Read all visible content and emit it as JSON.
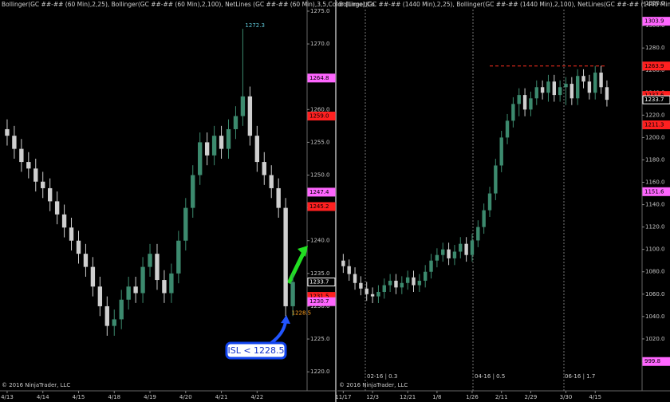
{
  "chart_data": [
    {
      "type": "candlestick",
      "title": "Bollinger(GC ##-## (60 Min),2,25), Bollinger(GC ##-## (60 Min),2,100), NetLines (GC ##-## (60 Min),3,5,Color [Lime],Co",
      "footer": "© 2016 NinjaTrader, LLC",
      "xlim": [
        -1,
        42
      ],
      "xticks": [
        {
          "value": 0,
          "label": "4/13"
        },
        {
          "value": 5,
          "label": "4/14"
        },
        {
          "value": 10,
          "label": "4/15"
        },
        {
          "value": 15,
          "label": "4/18"
        },
        {
          "value": 20,
          "label": "4/19"
        },
        {
          "value": 25,
          "label": "4/20"
        },
        {
          "value": 30,
          "label": "4/21"
        },
        {
          "value": 35,
          "label": "4/22"
        }
      ],
      "ylim": [
        1217.1,
        1276.7
      ],
      "yticks": [
        {
          "value": 1220,
          "label": "1220.0"
        },
        {
          "value": 1225,
          "label": "1225.0"
        },
        {
          "value": 1230,
          "label": "1230.0"
        },
        {
          "value": 1235,
          "label": "1235.0"
        },
        {
          "value": 1240,
          "label": "1240.0"
        },
        {
          "value": 1245,
          "label": "1245.0"
        },
        {
          "value": 1250,
          "label": "1250.0"
        },
        {
          "value": 1255,
          "label": "1255.0"
        },
        {
          "value": 1260,
          "label": "1260.0"
        },
        {
          "value": 1265,
          "label": "1265.0"
        },
        {
          "value": 1270,
          "label": "1270.0"
        },
        {
          "value": 1275,
          "label": "1275.0"
        }
      ],
      "up_color": "#3c8a6e",
      "down_color": "#cfcfcf",
      "open": [
        1257,
        1256,
        1254,
        1252,
        1251,
        1249,
        1248,
        1246,
        1244,
        1242,
        1240,
        1238,
        1236,
        1233,
        1230,
        1227,
        1228,
        1231,
        1233,
        1232,
        1236,
        1238,
        1234,
        1232,
        1235,
        1240,
        1245,
        1250,
        1255,
        1253,
        1256,
        1254,
        1257,
        1259,
        1262,
        1256,
        1252,
        1250,
        1248,
        1245,
        1230
      ],
      "high": [
        1258.5,
        1257.5,
        1255.5,
        1253.5,
        1252.5,
        1250.5,
        1249.5,
        1247.5,
        1245.5,
        1243.5,
        1241.5,
        1239.5,
        1237.5,
        1234.5,
        1231.5,
        1229.5,
        1232.5,
        1234.5,
        1234.5,
        1237.5,
        1239.5,
        1239.5,
        1235.5,
        1236.5,
        1241.5,
        1246.5,
        1251.5,
        1256.5,
        1256.5,
        1257.5,
        1257.5,
        1258.5,
        1260.5,
        1272.3,
        1263.5,
        1257.5,
        1253.5,
        1251.5,
        1249.5,
        1246.5,
        1235
      ],
      "low": [
        1254.5,
        1252.5,
        1250.5,
        1249.5,
        1247.5,
        1246.5,
        1244.5,
        1242.5,
        1240.5,
        1238.5,
        1236.5,
        1234.5,
        1231.5,
        1228.5,
        1225.5,
        1225.5,
        1226.5,
        1229.5,
        1230.5,
        1230.5,
        1234.5,
        1232.5,
        1230.5,
        1230.5,
        1233.5,
        1238.5,
        1243.5,
        1248.5,
        1251.5,
        1251.5,
        1252.5,
        1252.5,
        1255.5,
        1257.5,
        1254.5,
        1250.5,
        1248.5,
        1246.5,
        1243.5,
        1228.5,
        1228.5
      ],
      "close": [
        1256,
        1254,
        1252,
        1251,
        1249,
        1248,
        1246,
        1244,
        1242,
        1240,
        1238,
        1236,
        1233,
        1230,
        1227,
        1228,
        1231,
        1233,
        1232,
        1236,
        1238,
        1234,
        1232,
        1235,
        1240,
        1245,
        1250,
        1255,
        1253,
        1256,
        1254,
        1257,
        1259,
        1262,
        1256,
        1252,
        1250,
        1248,
        1245,
        1230,
        1233.7
      ],
      "price_tags": [
        {
          "value": 1264.8,
          "color": "#ff66ff"
        },
        {
          "value": 1259,
          "label": "1259.0",
          "color": "#ff2020"
        },
        {
          "value": 1247.4,
          "color": "#ff66ff"
        },
        {
          "value": 1245.2,
          "color": "#ff2020"
        },
        {
          "value": 1233.7,
          "color": "#ffffff"
        },
        {
          "value": 1231.5,
          "color": "#ff2020"
        },
        {
          "value": 1230.7,
          "color": "#ff66ff"
        }
      ],
      "annotations": [
        {
          "x": 33,
          "y": 1272.3
        },
        {
          "x": 39.5,
          "y": 1228.5
        }
      ],
      "callout": "ISL < 1228.5"
    },
    {
      "type": "candlestick",
      "title": "Bollinger(GC ##-## (1440 Min),2,25), Bollinger(GC ##-## (1440 Min),2,100), NetLines(GC ##-## (1440 Min),3,5,Color [L...",
      "footer": "© 2016 NinjaTrader, LLC",
      "sessions": [
        "02-16 | 0.3",
        "04-16 | 0.5",
        "06-16 | 1.7"
      ],
      "xlim": [
        -1,
        51
      ],
      "xticks": [
        {
          "value": 0,
          "label": "11/17"
        },
        {
          "value": 5,
          "label": "12/3"
        },
        {
          "value": 11,
          "label": "12/21"
        },
        {
          "value": 16,
          "label": "1/8"
        },
        {
          "value": 22,
          "label": "1/26"
        },
        {
          "value": 27,
          "label": "2/11"
        },
        {
          "value": 32,
          "label": "2/29"
        },
        {
          "value": 38,
          "label": "3/30"
        },
        {
          "value": 43,
          "label": "4/15"
        }
      ],
      "ylim": [
        973.6,
        1322.9
      ],
      "yticks": [
        {
          "value": 1000,
          "label": "1000.0"
        },
        {
          "value": 1020,
          "label": "1020.0"
        },
        {
          "value": 1040,
          "label": "1040.0"
        },
        {
          "value": 1060,
          "label": "1060.0"
        },
        {
          "value": 1080,
          "label": "1080.0"
        },
        {
          "value": 1100,
          "label": "1100.0"
        },
        {
          "value": 1120,
          "label": "1120.0"
        },
        {
          "value": 1140,
          "label": "1140.0"
        },
        {
          "value": 1160,
          "label": "1160.0"
        },
        {
          "value": 1180,
          "label": "1180.0"
        },
        {
          "value": 1200,
          "label": "1200.0"
        },
        {
          "value": 1220,
          "label": "1220.0"
        },
        {
          "value": 1240,
          "label": "1240.0"
        },
        {
          "value": 1260,
          "label": "1260.0"
        },
        {
          "value": 1280,
          "label": "1280.0"
        },
        {
          "value": 1300,
          "label": "1300.0"
        },
        {
          "value": 1320,
          "label": "1320.0"
        }
      ],
      "up_color": "#3c8a6e",
      "down_color": "#cfcfcf",
      "open": [
        1090,
        1085,
        1078,
        1070,
        1065,
        1060,
        1058,
        1062,
        1068,
        1072,
        1066,
        1070,
        1075,
        1068,
        1072,
        1080,
        1090,
        1095,
        1100,
        1092,
        1098,
        1105,
        1095,
        1108,
        1120,
        1135,
        1150,
        1175,
        1200,
        1215,
        1230,
        1238,
        1225,
        1235,
        1245,
        1240,
        1250,
        1238,
        1245,
        1248,
        1235,
        1255,
        1250,
        1240,
        1258,
        1245
      ],
      "high": [
        1096,
        1091,
        1084,
        1076,
        1071,
        1066,
        1068,
        1074,
        1078,
        1078,
        1076,
        1081,
        1081,
        1078,
        1086,
        1096,
        1101,
        1106,
        1106,
        1104,
        1111,
        1111,
        1114,
        1126,
        1141,
        1156,
        1181,
        1206,
        1221,
        1236,
        1244,
        1244,
        1241,
        1251,
        1251,
        1256,
        1256,
        1251,
        1254,
        1254,
        1261,
        1261,
        1256,
        1264,
        1264,
        1251
      ],
      "low": [
        1079,
        1072,
        1064,
        1059,
        1054,
        1052,
        1052,
        1056,
        1062,
        1060,
        1060,
        1064,
        1062,
        1062,
        1066,
        1074,
        1084,
        1089,
        1086,
        1086,
        1092,
        1089,
        1089,
        1102,
        1114,
        1129,
        1144,
        1169,
        1194,
        1209,
        1219,
        1219,
        1219,
        1229,
        1234,
        1232,
        1232,
        1232,
        1229,
        1229,
        1229,
        1244,
        1234,
        1234,
        1239,
        1227.7
      ],
      "close": [
        1085,
        1078,
        1070,
        1065,
        1060,
        1058,
        1062,
        1068,
        1072,
        1066,
        1070,
        1075,
        1068,
        1072,
        1080,
        1090,
        1095,
        1100,
        1092,
        1098,
        1105,
        1095,
        1108,
        1120,
        1135,
        1150,
        1175,
        1200,
        1215,
        1230,
        1238,
        1225,
        1235,
        1245,
        1240,
        1250,
        1238,
        1245,
        1248,
        1235,
        1255,
        1250,
        1240,
        1258,
        1245,
        1233.7
      ],
      "price_tags": [
        {
          "value": 1303.9,
          "color": "#ff66ff"
        },
        {
          "value": 1263.9,
          "color": "#ff2020"
        },
        {
          "value": 1237.6,
          "color": "#ff2020"
        },
        {
          "value": 1233.7,
          "color": "#ffffff"
        },
        {
          "value": 1211.3,
          "color": "#ff2020"
        },
        {
          "value": 1151.6,
          "color": "#ff66ff"
        },
        {
          "value": 999.8,
          "color": "#ff66ff"
        }
      ],
      "resistance": 1263.9
    }
  ]
}
